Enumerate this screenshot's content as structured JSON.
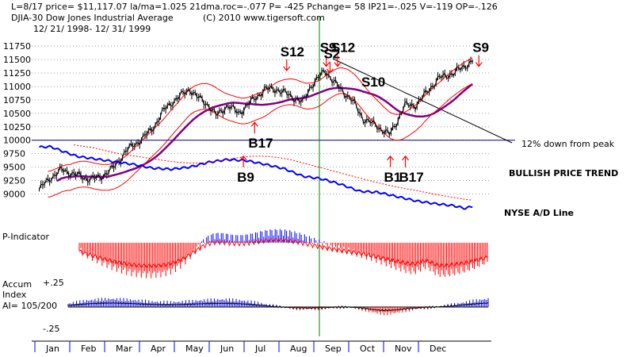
{
  "header": {
    "line1": "L=8/17  price= $11,117.07  la/ma=1.025 21dma.roc=-.077 P= -425 Pchange=  58 IP21=-.025 V=-119 OP=-.126",
    "line2_left": "DJIA-30  Dow Jones Industrial Average",
    "line2_right": "(C) 2010 www.tigersoft.com",
    "date_range": "12/ 21/ 1998-  12/ 31/ 1999"
  },
  "labels": {
    "down_peak": "12% down from peak",
    "bullish_trend": "BULLISH PRICE TREND",
    "nyse_ad": "NYSE A/D Line",
    "p_indicator": "P-Indicator",
    "accum_1": "Accum",
    "accum_2": "Index",
    "accum_3": "AI= 105/200",
    "accum_plus": "+.25",
    "accum_minus": "-.25"
  },
  "signals": [
    {
      "text": "S12",
      "x": 6.4,
      "y": 11560,
      "arrow": "down"
    },
    {
      "text": "S9",
      "x": 7.45,
      "y": 11640,
      "arrow": "down"
    },
    {
      "text": "S2",
      "x": 7.55,
      "y": 11520,
      "arrow": "down"
    },
    {
      "text": "S12",
      "x": 7.75,
      "y": 11640,
      "arrow": "down"
    },
    {
      "text": "S10",
      "x": 8.55,
      "y": 11000,
      "arrow": "none"
    },
    {
      "text": "S9",
      "x": 11.5,
      "y": 11640,
      "arrow": "down"
    },
    {
      "text": "B17",
      "x": 5.55,
      "y": 9860,
      "arrow": "up"
    },
    {
      "text": "B9",
      "x": 5.25,
      "y": 9230,
      "arrow": "up"
    },
    {
      "text": "B1",
      "x": 9.15,
      "y": 9230,
      "arrow": "up"
    },
    {
      "text": "B17",
      "x": 9.55,
      "y": 9230,
      "arrow": "up"
    }
  ],
  "colors": {
    "price": "#000000",
    "bands": "#ff0000",
    "ma": "#800080",
    "ad_line": "#0000ff",
    "indicator_pos": "#0000ff",
    "indicator_neg": "#ff0000",
    "vertical_marker": "#008000"
  },
  "chart_data": {
    "type": "line",
    "series_price": {
      "x": [
        0.0,
        0.3,
        0.6,
        1.0,
        1.3,
        1.6,
        2.0,
        2.3,
        2.6,
        3.0,
        3.3,
        3.6,
        4.0,
        4.2,
        4.5,
        4.7,
        5.0,
        5.3,
        5.6,
        6.0,
        6.3,
        6.6,
        7.0,
        7.2,
        7.4,
        7.6,
        7.8,
        8.0,
        8.3,
        8.6,
        9.0,
        9.3,
        9.5,
        9.7,
        10.0,
        10.3,
        10.6,
        11.0,
        11.3,
        11.5
      ],
      "y": [
        9080,
        9300,
        9450,
        9350,
        9280,
        9300,
        9500,
        9800,
        9950,
        10200,
        10550,
        10750,
        10950,
        10800,
        10650,
        10450,
        10650,
        10500,
        10700,
        10950,
        10950,
        10850,
        10700,
        11000,
        11150,
        11300,
        11100,
        10950,
        10750,
        10400,
        10250,
        10100,
        10350,
        10650,
        10650,
        10900,
        11150,
        11250,
        11380,
        11480
      ]
    },
    "series_ad_line": {
      "x": [
        0.0,
        0.3,
        0.6,
        1.0,
        1.5,
        2.0,
        2.5,
        3.0,
        3.5,
        4.0,
        4.5,
        5.0,
        5.5,
        6.0,
        6.5,
        7.0,
        7.5,
        8.0,
        8.5,
        9.0,
        9.5,
        10.0,
        10.5,
        11.0,
        11.3,
        11.5
      ],
      "y": [
        9870,
        9880,
        9800,
        9700,
        9650,
        9600,
        9550,
        9480,
        9460,
        9500,
        9590,
        9640,
        9620,
        9550,
        9470,
        9330,
        9280,
        9180,
        9050,
        9030,
        8950,
        8870,
        8820,
        8780,
        8730,
        8770
      ]
    },
    "yticks": [
      9000,
      9250,
      9500,
      9750,
      10000,
      10250,
      10500,
      10750,
      11000,
      11250,
      11500,
      11750
    ],
    "months": [
      "Jan",
      "Feb",
      "Mar",
      "Apr",
      "May",
      "Jun",
      "Jul",
      "Aug",
      "Sep",
      "Oct",
      "Nov",
      "Dec"
    ],
    "xlim": [
      -0.2,
      12.0
    ],
    "ylim": [
      8800,
      11900
    ],
    "reference_line": 10000
  }
}
